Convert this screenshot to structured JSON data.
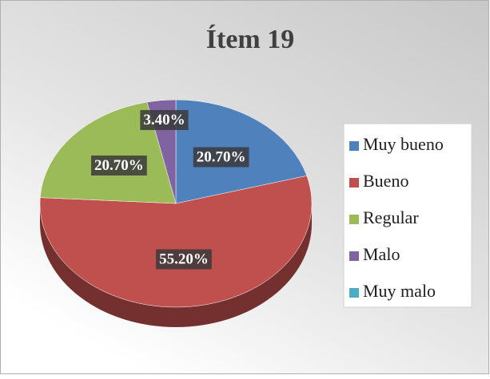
{
  "chart_data": {
    "type": "pie",
    "title": "Ítem 19",
    "categories": [
      "Muy bueno",
      "Bueno",
      "Regular",
      "Malo",
      "Muy malo"
    ],
    "values": [
      20.7,
      55.2,
      20.7,
      3.4,
      0
    ],
    "value_labels": [
      "20.70%",
      "55.20%",
      "20.70%",
      "3.40%",
      null
    ],
    "colors": [
      "#4f81bd",
      "#c0504d",
      "#9bbb59",
      "#8064a2",
      "#4bacc6"
    ],
    "legend": "right"
  }
}
